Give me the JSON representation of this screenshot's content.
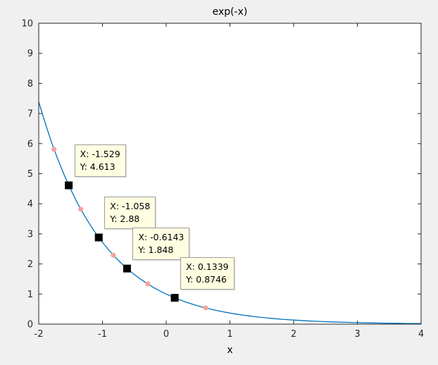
{
  "figure": {
    "background": "#f0f0f0",
    "plot_background": "#ffffff",
    "axis_color": "#262626"
  },
  "chart_data": {
    "type": "line",
    "title": "exp(-x)",
    "xlabel": "x",
    "ylabel": "",
    "xlim": [
      -2,
      4
    ],
    "ylim": [
      0,
      10
    ],
    "x_ticks": [
      -2,
      -1,
      0,
      1,
      2,
      3,
      4
    ],
    "y_ticks": [
      0,
      1,
      2,
      3,
      4,
      5,
      6,
      7,
      8,
      9,
      10
    ],
    "grid": false,
    "line_color": "#0072BD",
    "curve_expression": "y = exp(-x)",
    "curve_points": [
      [
        -2.0,
        7.389
      ],
      [
        -1.9,
        6.686
      ],
      [
        -1.8,
        6.05
      ],
      [
        -1.7,
        5.474
      ],
      [
        -1.6,
        4.953
      ],
      [
        -1.5,
        4.482
      ],
      [
        -1.4,
        4.055
      ],
      [
        -1.3,
        3.669
      ],
      [
        -1.2,
        3.32
      ],
      [
        -1.1,
        3.004
      ],
      [
        -1.0,
        2.718
      ],
      [
        -0.9,
        2.46
      ],
      [
        -0.8,
        2.226
      ],
      [
        -0.7,
        2.014
      ],
      [
        -0.6,
        1.822
      ],
      [
        -0.5,
        1.649
      ],
      [
        -0.4,
        1.492
      ],
      [
        -0.3,
        1.35
      ],
      [
        -0.2,
        1.221
      ],
      [
        -0.1,
        1.105
      ],
      [
        0.0,
        1.0
      ],
      [
        0.1,
        0.905
      ],
      [
        0.2,
        0.819
      ],
      [
        0.3,
        0.741
      ],
      [
        0.4,
        0.67
      ],
      [
        0.5,
        0.607
      ],
      [
        0.6,
        0.549
      ],
      [
        0.7,
        0.497
      ],
      [
        0.8,
        0.449
      ],
      [
        0.9,
        0.407
      ],
      [
        1.0,
        0.368
      ],
      [
        1.1,
        0.333
      ],
      [
        1.2,
        0.301
      ],
      [
        1.3,
        0.273
      ],
      [
        1.4,
        0.247
      ],
      [
        1.5,
        0.223
      ],
      [
        1.6,
        0.202
      ],
      [
        1.7,
        0.183
      ],
      [
        1.8,
        0.165
      ],
      [
        1.9,
        0.15
      ],
      [
        2.0,
        0.135
      ],
      [
        2.2,
        0.111
      ],
      [
        2.4,
        0.091
      ],
      [
        2.6,
        0.074
      ],
      [
        2.8,
        0.061
      ],
      [
        3.0,
        0.05
      ],
      [
        3.2,
        0.041
      ],
      [
        3.4,
        0.033
      ],
      [
        3.6,
        0.027
      ],
      [
        3.8,
        0.022
      ],
      [
        4.0,
        0.018
      ]
    ],
    "scatter": {
      "name": "sample-points",
      "color": "#f4a3a0",
      "points": [
        [
          -1.76,
          5.81
        ],
        [
          -1.34,
          3.82
        ],
        [
          -0.83,
          2.29
        ],
        [
          -0.29,
          1.34
        ],
        [
          0.62,
          0.54
        ]
      ]
    },
    "selected_markers": {
      "name": "selected-points",
      "color": "#000000",
      "points": [
        [
          -1.529,
          4.613
        ],
        [
          -1.058,
          2.88
        ],
        [
          -0.6143,
          1.848
        ],
        [
          0.1339,
          0.8746
        ]
      ]
    },
    "datatips": [
      {
        "x": -1.529,
        "y": 4.613,
        "label_lines": [
          "X: -1.529",
          "Y: 4.613"
        ]
      },
      {
        "x": -1.058,
        "y": 2.88,
        "label_lines": [
          "X: -1.058",
          "Y: 2.88"
        ]
      },
      {
        "x": -0.6143,
        "y": 1.848,
        "label_lines": [
          "X: -0.6143",
          "Y: 1.848"
        ]
      },
      {
        "x": 0.1339,
        "y": 0.8746,
        "label_lines": [
          "X: 0.1339",
          "Y: 0.8746"
        ]
      }
    ],
    "datatip_style": {
      "bg": "#fffee1",
      "border": "#9e9e9e"
    }
  }
}
